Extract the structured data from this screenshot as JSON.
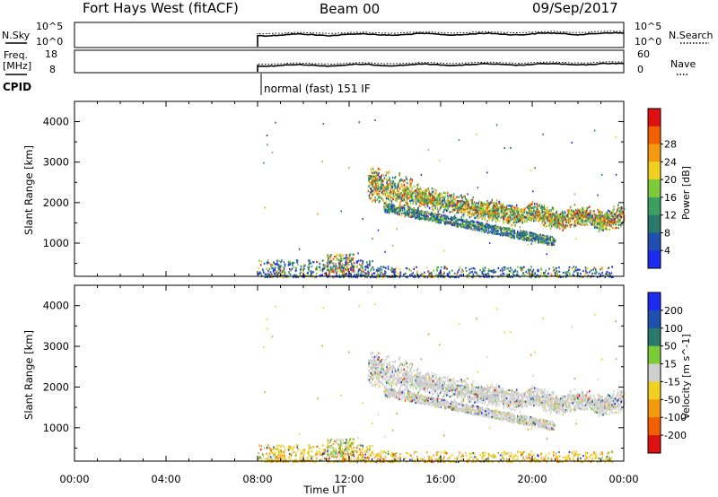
{
  "header": {
    "station": "Fort Hays West (fitACF)",
    "beam": "Beam 00",
    "date": "09/Sep/2017"
  },
  "status_panels": {
    "nsky_label": "N.Sky",
    "nsky_ticks": [
      "10^5",
      "10^0"
    ],
    "nsearch_label": "N.Search",
    "nsearch_ticks": [
      "10^5",
      "10^0"
    ],
    "freq_label_1": "Freq.",
    "freq_label_2": "[MHz]",
    "freq_ticks": [
      "18",
      "8"
    ],
    "nave_label": "Nave",
    "nave_ticks": [
      "60",
      "0"
    ],
    "cpid_label": "CPID",
    "cpid_text": "normal (fast) 151 IF"
  },
  "chart_data": [
    {
      "type": "heatmap",
      "title": "",
      "xlabel": "Time UT",
      "ylabel": "Slant Range [km]",
      "x_ticks": [
        "00:00",
        "04:00",
        "08:00",
        "12:00",
        "16:00",
        "20:00",
        "00:00"
      ],
      "x_range_hours": [
        0,
        24
      ],
      "y_ticks": [
        1000,
        2000,
        3000,
        4000
      ],
      "ylim": [
        180,
        4500
      ],
      "colorbar_label": "Power [dB]",
      "colorbar_ticks": [
        4,
        8,
        12,
        16,
        20,
        24,
        28
      ],
      "colorbar_range": [
        0,
        32
      ],
      "colors": [
        "#1b2cf0",
        "#1f4fb0",
        "#2a7a6a",
        "#3aa060",
        "#7ecb3a",
        "#f0d020",
        "#f59a10",
        "#f06000",
        "#e01010"
      ],
      "data_start_hour": 8.0,
      "scatter_features": [
        {
          "name": "near-range scatter",
          "t_start": 8.0,
          "t_end": 23.5,
          "range_low": 180,
          "range_high": 600
        },
        {
          "name": "main far-range band",
          "t_start": 12.8,
          "t_end": 24.0,
          "range_center_start": 2500,
          "range_center_end": 1650
        },
        {
          "name": "lower band",
          "t_start": 13.5,
          "t_end": 21.0,
          "range_center_start": 1900,
          "range_center_end": 1050
        }
      ]
    },
    {
      "type": "heatmap",
      "title": "",
      "xlabel": "Time UT",
      "ylabel": "Slant Range [km]",
      "x_ticks": [
        "00:00",
        "04:00",
        "08:00",
        "12:00",
        "16:00",
        "20:00",
        "00:00"
      ],
      "x_range_hours": [
        0,
        24
      ],
      "y_ticks": [
        1000,
        2000,
        3000,
        4000
      ],
      "ylim": [
        180,
        4500
      ],
      "colorbar_label": "Velocity [m s^-1]",
      "colorbar_ticks": [
        "200",
        "100",
        "50",
        "15",
        "-15",
        "-50",
        "-100",
        "-200"
      ],
      "colors": [
        "#1b2cf0",
        "#1f4fb0",
        "#2a7a6a",
        "#7ecb3a",
        "#cfcfcf",
        "#f0d020",
        "#f59a10",
        "#f06000",
        "#e01010"
      ],
      "data_start_hour": 8.0,
      "scatter_features": [
        {
          "name": "near-range scatter",
          "t_start": 8.0,
          "t_end": 23.5,
          "range_low": 180,
          "range_high": 600
        },
        {
          "name": "main far-range band",
          "t_start": 12.8,
          "t_end": 24.0,
          "range_center_start": 2500,
          "range_center_end": 1650
        },
        {
          "name": "lower band",
          "t_start": 13.5,
          "t_end": 21.0,
          "range_center_start": 1900,
          "range_center_end": 1050
        }
      ]
    }
  ]
}
